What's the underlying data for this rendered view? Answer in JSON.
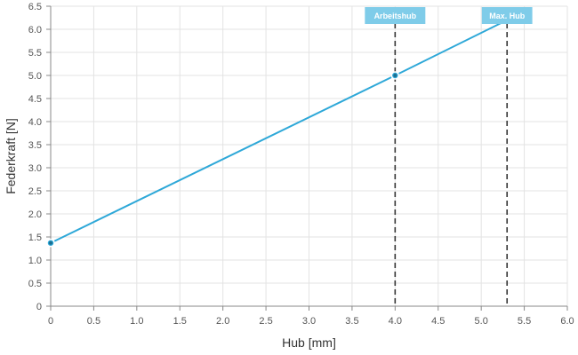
{
  "chart_data": {
    "type": "line",
    "xlabel": "Hub [mm]",
    "ylabel": "Federkraft [N]",
    "xlim": [
      0,
      6.0
    ],
    "ylim": [
      0,
      6.5
    ],
    "x_ticks": [
      "0",
      "0.5",
      "1.0",
      "1.5",
      "2.0",
      "2.5",
      "3.0",
      "3.5",
      "4.0",
      "4.5",
      "5.0",
      "5.5",
      "6.0"
    ],
    "y_ticks": [
      "0",
      "0.5",
      "1.0",
      "1.5",
      "2.0",
      "2.5",
      "3.0",
      "3.5",
      "4.0",
      "4.5",
      "5.0",
      "5.5",
      "6.0",
      "6.5"
    ],
    "grid": true,
    "series": [
      {
        "color": "#2ea8d8",
        "x": [
          0,
          4.0,
          5.3
        ],
        "y": [
          1.37,
          5.0,
          6.2
        ]
      }
    ],
    "markers": [
      {
        "label": "Arbeitshub",
        "x": 4.0,
        "y": 5.0
      },
      {
        "label": "Max. Hub",
        "x": 5.3,
        "y": 6.2
      }
    ],
    "colors": {
      "line": "#2ea8d8",
      "point": "#2ea8d8",
      "label_bg": "#7fcce9",
      "grid": "#e3e3e3",
      "axis": "#888888",
      "vline": "#333333"
    }
  }
}
